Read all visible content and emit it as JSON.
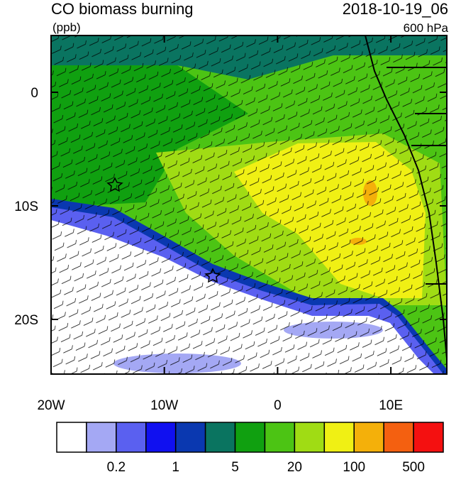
{
  "title": "CO biomass burning",
  "units": "(ppb)",
  "date": "2018-10-19_06",
  "level": "600 hPa",
  "lon_ticks": [
    {
      "value": -20,
      "label": "20W"
    },
    {
      "value": -10,
      "label": "10W"
    },
    0,
    {
      "value": 10,
      "label": "10E"
    }
  ],
  "lat_ticks": [
    0,
    {
      "value": -10,
      "label": "10S"
    },
    {
      "value": -20,
      "label": "20S"
    }
  ],
  "colorbar": {
    "colors": [
      "#ffffff",
      "#a4a8f4",
      "#5a60f0",
      "#1010f0",
      "#0a38b0",
      "#0a7460",
      "#10a010",
      "#4cc414",
      "#a0dc14",
      "#f0f014",
      "#f4b00a",
      "#f46010",
      "#f41010"
    ],
    "ticks": [
      0.2,
      1,
      5,
      20,
      100,
      500
    ]
  }
}
